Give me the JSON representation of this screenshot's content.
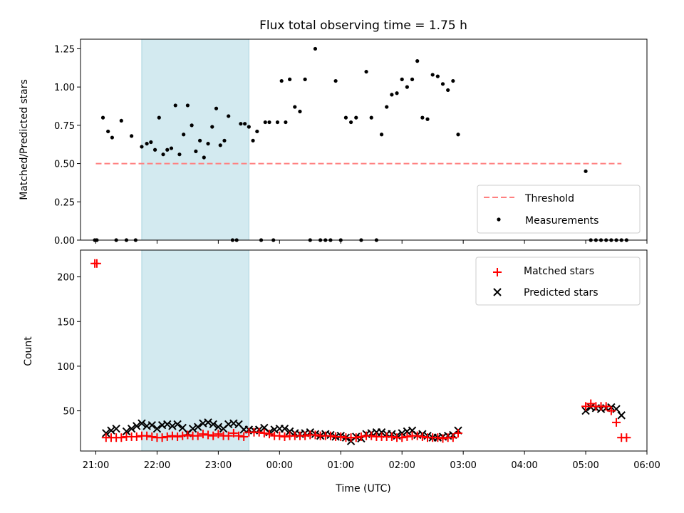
{
  "chart_data": [
    {
      "type": "scatter",
      "title": "Flux total observing time = 1.75 h",
      "ylabel": "Matched/Predicted stars",
      "xlim": [
        "20:45",
        "06:00"
      ],
      "ylim": [
        0,
        1.3125
      ],
      "yticks": [
        "0.00",
        "0.25",
        "0.50",
        "0.75",
        "1.00",
        "1.25"
      ],
      "ytick_values": [
        0,
        0.25,
        0.5,
        0.75,
        1.0,
        1.25
      ],
      "shaded_span": {
        "from": "21:45",
        "to": "23:30",
        "color": "#d3eaf0"
      },
      "threshold": {
        "name": "Threshold",
        "value": 0.5,
        "from": "21:00",
        "to": "05:35",
        "color": "#ff8080"
      },
      "legend_position": "lower-right",
      "series": [
        {
          "name": "Measurements",
          "color": "#000000",
          "x": [
            "20:59",
            "21:01",
            "21:07",
            "21:12",
            "21:16",
            "21:20",
            "21:25",
            "21:30",
            "21:35",
            "21:39",
            "21:45",
            "21:50",
            "21:54",
            "21:58",
            "22:02",
            "22:06",
            "22:10",
            "22:14",
            "22:18",
            "22:22",
            "22:26",
            "22:30",
            "22:34",
            "22:38",
            "22:42",
            "22:46",
            "22:50",
            "22:54",
            "22:58",
            "23:02",
            "23:06",
            "23:10",
            "23:14",
            "23:18",
            "23:22",
            "23:26",
            "23:30",
            "23:34",
            "23:38",
            "23:42",
            "23:46",
            "23:50",
            "23:54",
            "23:58",
            "00:02",
            "00:06",
            "00:10",
            "00:15",
            "00:20",
            "00:25",
            "00:30",
            "00:35",
            "00:40",
            "00:45",
            "00:50",
            "00:55",
            "01:00",
            "01:05",
            "01:10",
            "01:15",
            "01:20",
            "01:25",
            "01:30",
            "01:35",
            "01:40",
            "01:45",
            "01:50",
            "01:55",
            "02:00",
            "02:05",
            "02:10",
            "02:15",
            "02:20",
            "02:25",
            "02:30",
            "02:35",
            "02:40",
            "02:45",
            "02:50",
            "02:55",
            "05:00",
            "05:05",
            "05:10",
            "05:15",
            "05:20",
            "05:25",
            "05:30",
            "05:35",
            "05:40"
          ],
          "y": [
            0.0,
            0.0,
            0.8,
            0.71,
            0.67,
            0.0,
            0.78,
            0.0,
            0.68,
            0.0,
            0.61,
            0.63,
            0.64,
            0.59,
            0.8,
            0.56,
            0.59,
            0.6,
            0.88,
            0.56,
            0.69,
            0.88,
            0.75,
            0.58,
            0.65,
            0.54,
            0.63,
            0.74,
            0.86,
            0.62,
            0.65,
            0.81,
            0.0,
            0.0,
            0.76,
            0.76,
            0.74,
            0.65,
            0.71,
            0.0,
            0.77,
            0.77,
            0.0,
            0.77,
            1.04,
            0.77,
            1.05,
            0.87,
            0.84,
            1.05,
            0.0,
            1.25,
            0.0,
            0.0,
            0.0,
            1.04,
            0.0,
            0.8,
            0.77,
            0.8,
            0.0,
            1.1,
            0.8,
            0.0,
            0.69,
            0.87,
            0.95,
            0.96,
            1.05,
            1.0,
            1.05,
            1.17,
            0.8,
            0.79,
            1.08,
            1.07,
            1.02,
            0.98,
            1.04,
            0.69,
            0.45,
            0.0,
            0.0,
            0.0,
            0.0,
            0.0,
            0.0,
            0.0,
            0.0
          ]
        }
      ]
    },
    {
      "type": "scatter",
      "ylabel": "Count",
      "xlabel": "Time (UTC)",
      "xlim": [
        "20:45",
        "06:00"
      ],
      "xticks": [
        "21:00",
        "22:00",
        "23:00",
        "00:00",
        "01:00",
        "02:00",
        "03:00",
        "04:00",
        "05:00",
        "06:00"
      ],
      "ylim": [
        5,
        230
      ],
      "yticks": [
        "50",
        "100",
        "150",
        "200"
      ],
      "ytick_values": [
        50,
        100,
        150,
        200
      ],
      "shaded_span": {
        "from": "21:45",
        "to": "23:30",
        "color": "#d3eaf0"
      },
      "legend_position": "upper-right",
      "series": [
        {
          "name": "Matched stars",
          "marker": "+",
          "color": "#ff0000",
          "x": [
            "20:59",
            "21:01",
            "21:10",
            "21:15",
            "21:20",
            "21:25",
            "21:30",
            "21:35",
            "21:40",
            "21:45",
            "21:50",
            "21:55",
            "22:00",
            "22:05",
            "22:10",
            "22:15",
            "22:20",
            "22:25",
            "22:30",
            "22:35",
            "22:40",
            "22:45",
            "22:50",
            "22:55",
            "23:00",
            "23:05",
            "23:10",
            "23:15",
            "23:20",
            "23:25",
            "23:30",
            "23:35",
            "23:40",
            "23:45",
            "23:50",
            "23:55",
            "00:00",
            "00:05",
            "00:10",
            "00:15",
            "00:20",
            "00:25",
            "00:30",
            "00:35",
            "00:40",
            "00:45",
            "00:50",
            "00:55",
            "01:00",
            "01:05",
            "01:10",
            "01:15",
            "01:20",
            "01:25",
            "01:30",
            "01:35",
            "01:40",
            "01:45",
            "01:50",
            "01:55",
            "02:00",
            "02:05",
            "02:10",
            "02:15",
            "02:20",
            "02:25",
            "02:30",
            "02:35",
            "02:40",
            "02:45",
            "02:50",
            "02:55",
            "05:00",
            "05:05",
            "05:10",
            "05:15",
            "05:20",
            "05:25",
            "05:30",
            "05:35",
            "05:40"
          ],
          "y": [
            215,
            215,
            20,
            20,
            20,
            20,
            21,
            21,
            21,
            22,
            22,
            21,
            20,
            20,
            21,
            22,
            21,
            22,
            23,
            22,
            22,
            24,
            23,
            22,
            24,
            22,
            22,
            25,
            22,
            21,
            26,
            26,
            26,
            25,
            24,
            22,
            22,
            21,
            22,
            22,
            22,
            22,
            23,
            23,
            22,
            22,
            22,
            21,
            21,
            20,
            20,
            20,
            21,
            22,
            22,
            21,
            21,
            21,
            21,
            20,
            20,
            21,
            22,
            22,
            21,
            20,
            20,
            20,
            19,
            20,
            20,
            25,
            55,
            58,
            55,
            55,
            55,
            50,
            37,
            20,
            20
          ]
        },
        {
          "name": "Predicted stars",
          "marker": "x",
          "color": "#000000",
          "x": [
            "21:10",
            "21:15",
            "21:20",
            "21:30",
            "21:35",
            "21:40",
            "21:45",
            "21:50",
            "21:55",
            "22:00",
            "22:05",
            "22:10",
            "22:15",
            "22:20",
            "22:25",
            "22:30",
            "22:35",
            "22:40",
            "22:45",
            "22:50",
            "22:55",
            "23:00",
            "23:05",
            "23:10",
            "23:15",
            "23:20",
            "23:25",
            "23:30",
            "23:35",
            "23:40",
            "23:45",
            "23:50",
            "23:55",
            "00:00",
            "00:05",
            "00:10",
            "00:15",
            "00:20",
            "00:25",
            "00:30",
            "00:35",
            "00:40",
            "00:45",
            "00:50",
            "00:55",
            "01:00",
            "01:05",
            "01:10",
            "01:15",
            "01:20",
            "01:25",
            "01:30",
            "01:35",
            "01:40",
            "01:45",
            "01:50",
            "01:55",
            "02:00",
            "02:05",
            "02:10",
            "02:15",
            "02:20",
            "02:25",
            "02:30",
            "02:35",
            "02:40",
            "02:45",
            "02:50",
            "02:55",
            "05:00",
            "05:05",
            "05:10",
            "05:15",
            "05:20",
            "05:25",
            "05:30",
            "05:35"
          ],
          "y": [
            25,
            28,
            30,
            27,
            30,
            33,
            36,
            33,
            34,
            30,
            34,
            35,
            33,
            35,
            31,
            25,
            30,
            32,
            36,
            37,
            35,
            32,
            30,
            35,
            36,
            35,
            29,
            29,
            28,
            29,
            31,
            26,
            29,
            30,
            30,
            27,
            25,
            24,
            25,
            26,
            24,
            22,
            24,
            23,
            21,
            22,
            20,
            16,
            21,
            19,
            24,
            25,
            26,
            26,
            24,
            24,
            22,
            25,
            27,
            28,
            23,
            24,
            22,
            20,
            20,
            21,
            22,
            23,
            28,
            50,
            54,
            53,
            52,
            53,
            54,
            52,
            45
          ]
        }
      ]
    }
  ]
}
